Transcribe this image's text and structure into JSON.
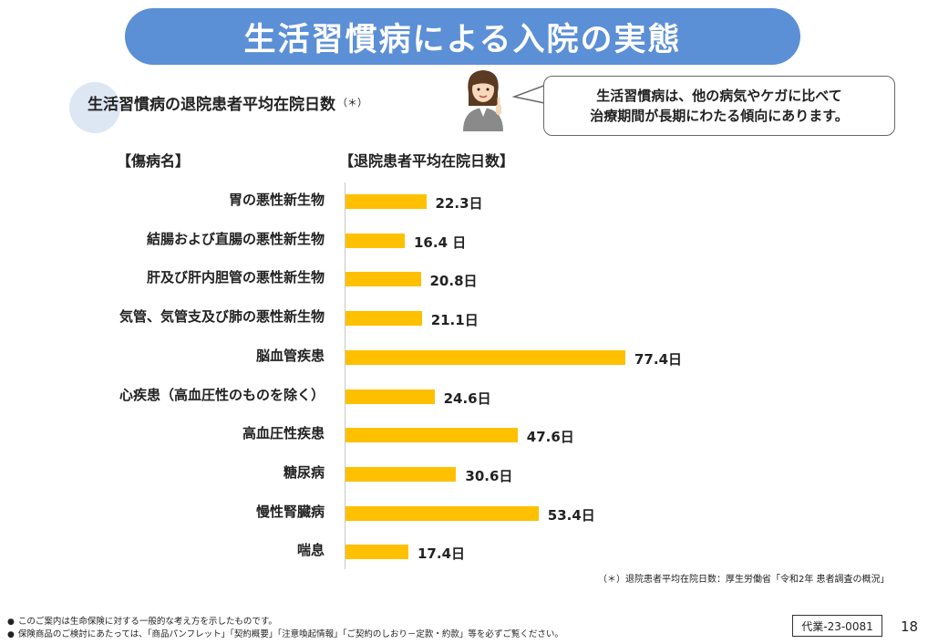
{
  "title": "生活習慣病による入院の実態",
  "subtitle": "生活習慣病の退院患者平均在院日数",
  "subtitle_note_mark": "（＊）",
  "speech_bubble": {
    "line1": "生活習慣病は、他の病気やケガに比べて",
    "line2": "治療期間が長期にわたる傾向にあります。"
  },
  "headers": {
    "left": "【傷病名】",
    "right": "【退院患者平均在院日数】"
  },
  "chart_data": {
    "type": "bar",
    "orientation": "horizontal",
    "categories": [
      "胃の悪性新生物",
      "結腸および直腸の悪性新生物",
      "肝及び肝内胆管の悪性新生物",
      "気管、気管支及び肺の悪性新生物",
      "脳血管疾患",
      "心疾患（高血圧性のものを除く）",
      "高血圧性疾患",
      "糖尿病",
      "慢性腎臓病",
      "喘息"
    ],
    "values": [
      22.3,
      16.4,
      20.8,
      21.1,
      77.4,
      24.6,
      47.6,
      30.6,
      53.4,
      17.4
    ],
    "value_labels": [
      "22.3日",
      "16.4 日",
      "20.8日",
      "21.1日",
      "77.4日",
      "24.6日",
      "47.6日",
      "30.6日",
      "53.4日",
      "17.4日"
    ],
    "bar_color": "#ffc000"
  },
  "source_note": "（＊）退院患者平均在院日数：厚生労働省「令和2年 患者調査の概況」",
  "footer": {
    "line1": "このご案内は生命保険に対する一般的な考え方を示したものです。",
    "line2": "保険商品のご検討にあたっては、「商品パンフレット」「契約概要」「注意喚起情報」「ご契約のしおり－定款・約款」等を必ずご覧ください。"
  },
  "doc_code": "代業-23-0081",
  "page_number": "18",
  "colors": {
    "banner": "#5b8fd6",
    "subtitle_circle": "#dde7f4"
  }
}
